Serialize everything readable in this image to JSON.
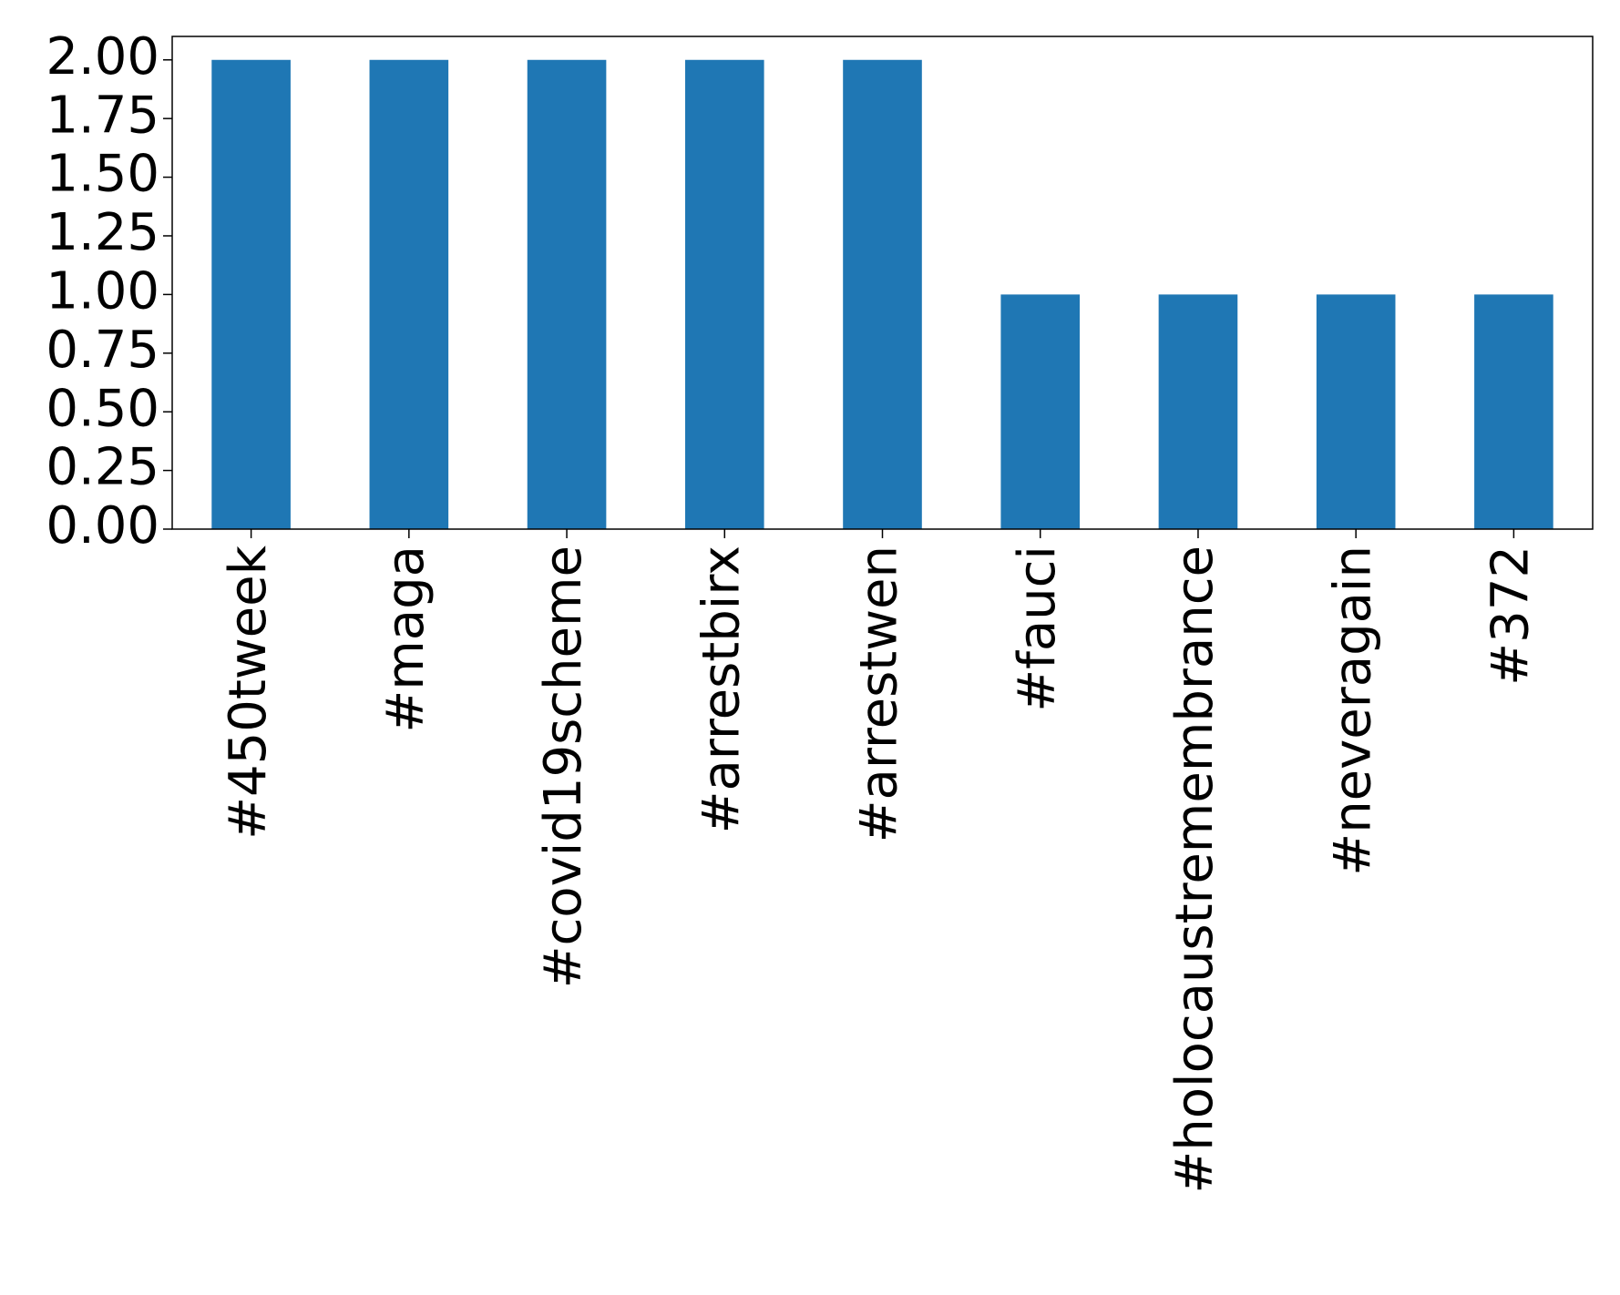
{
  "chart_data": {
    "type": "bar",
    "categories": [
      "#450tweek",
      "#maga",
      "#covid19scheme",
      "#arrestbirx",
      "#arrestwen",
      "#fauci",
      "#holocaustremembrance",
      "#neveragain",
      "#372"
    ],
    "values": [
      2,
      2,
      2,
      2,
      2,
      1,
      1,
      1,
      1
    ],
    "color": "#1f77b4",
    "ylim": [
      0,
      2.1
    ],
    "yticks": [
      {
        "value": 0,
        "label": "0.00"
      },
      {
        "value": 0.25,
        "label": "0.25"
      },
      {
        "value": 0.5,
        "label": "0.50"
      },
      {
        "value": 0.75,
        "label": "0.75"
      },
      {
        "value": 1,
        "label": "1.00"
      },
      {
        "value": 1.25,
        "label": "1.25"
      },
      {
        "value": 1.5,
        "label": "1.50"
      },
      {
        "value": 1.75,
        "label": "1.75"
      },
      {
        "value": 2,
        "label": "2.00"
      }
    ],
    "grid": false
  }
}
